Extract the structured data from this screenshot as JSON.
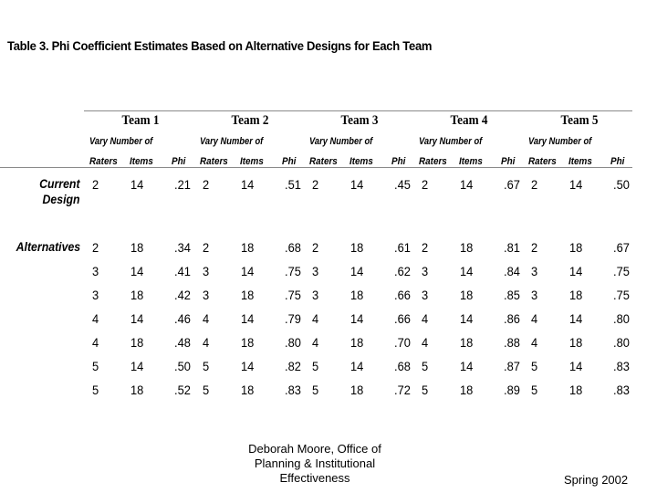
{
  "title": "Table 3.  Phi Coefficient Estimates Based on Alternative Designs for Each Team",
  "teams": [
    "Team 1",
    "Team 2",
    "Team 3",
    "Team 4",
    "Team 5"
  ],
  "vary_label": "Vary Number of",
  "col_headers": [
    "Raters",
    "Items",
    "Phi"
  ],
  "row_labels": {
    "current_line1": "Current",
    "current_line2": "Design",
    "alternatives": "Alternatives"
  },
  "current_design": [
    [
      "2",
      "14",
      ".21"
    ],
    [
      "2",
      "14",
      ".51"
    ],
    [
      "2",
      "14",
      ".45"
    ],
    [
      "2",
      "14",
      ".67"
    ],
    [
      "2",
      "14",
      ".50"
    ]
  ],
  "alternatives": [
    [
      [
        "2",
        "18",
        ".34"
      ],
      [
        "2",
        "18",
        ".68"
      ],
      [
        "2",
        "18",
        ".61"
      ],
      [
        "2",
        "18",
        ".81"
      ],
      [
        "2",
        "18",
        ".67"
      ]
    ],
    [
      [
        "3",
        "14",
        ".41"
      ],
      [
        "3",
        "14",
        ".75"
      ],
      [
        "3",
        "14",
        ".62"
      ],
      [
        "3",
        "14",
        ".84"
      ],
      [
        "3",
        "14",
        ".75"
      ]
    ],
    [
      [
        "3",
        "18",
        ".42"
      ],
      [
        "3",
        "18",
        ".75"
      ],
      [
        "3",
        "18",
        ".66"
      ],
      [
        "3",
        "18",
        ".85"
      ],
      [
        "3",
        "18",
        ".75"
      ]
    ],
    [
      [
        "4",
        "14",
        ".46"
      ],
      [
        "4",
        "14",
        ".79"
      ],
      [
        "4",
        "14",
        ".66"
      ],
      [
        "4",
        "14",
        ".86"
      ],
      [
        "4",
        "14",
        ".80"
      ]
    ],
    [
      [
        "4",
        "18",
        ".48"
      ],
      [
        "4",
        "18",
        ".80"
      ],
      [
        "4",
        "18",
        ".70"
      ],
      [
        "4",
        "18",
        ".88"
      ],
      [
        "4",
        "18",
        ".80"
      ]
    ],
    [
      [
        "5",
        "14",
        ".50"
      ],
      [
        "5",
        "14",
        ".82"
      ],
      [
        "5",
        "14",
        ".68"
      ],
      [
        "5",
        "14",
        ".87"
      ],
      [
        "5",
        "14",
        ".83"
      ]
    ],
    [
      [
        "5",
        "18",
        ".52"
      ],
      [
        "5",
        "18",
        ".83"
      ],
      [
        "5",
        "18",
        ".72"
      ],
      [
        "5",
        "18",
        ".89"
      ],
      [
        "5",
        "18",
        ".83"
      ]
    ]
  ],
  "footer": {
    "line1": "Deborah Moore, Office of",
    "line2": "Planning & Institutional",
    "line3": "Effectiveness",
    "date": "Spring 2002"
  }
}
